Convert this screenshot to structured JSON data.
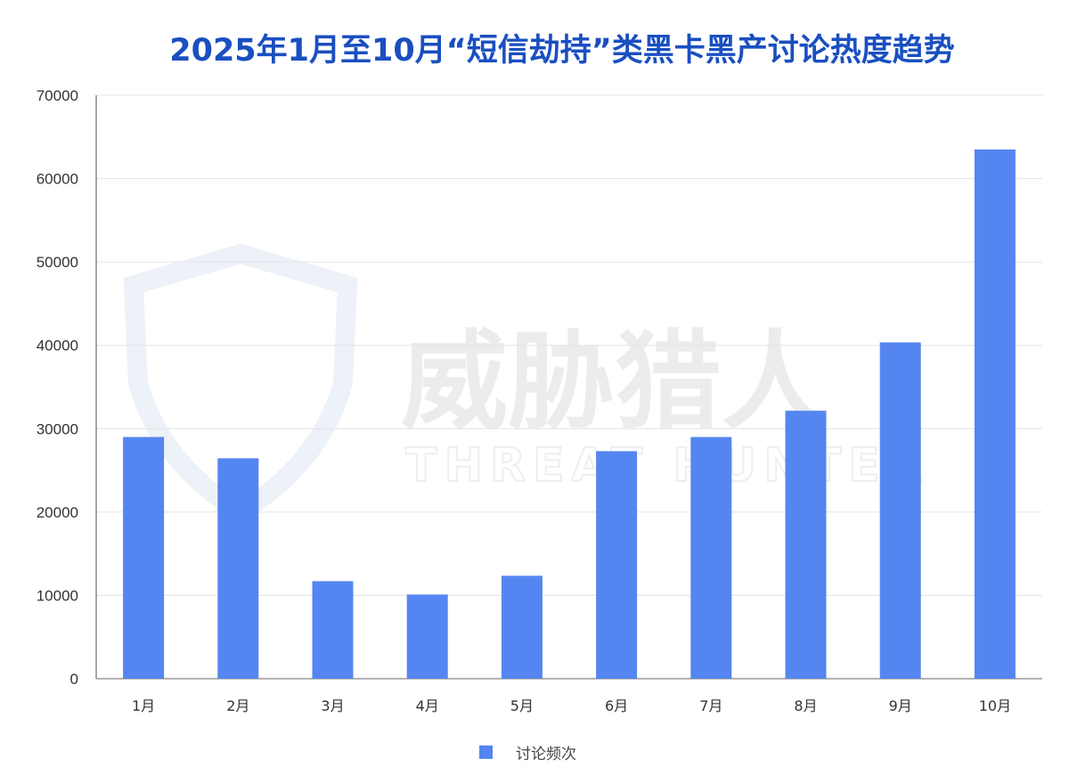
{
  "chart_data": {
    "type": "bar",
    "title": "2025年1月至10月“短信劫持”类黑卡黑产讨论热度趋势",
    "categories": [
      "1月",
      "2月",
      "3月",
      "4月",
      "5月",
      "6月",
      "7月",
      "8月",
      "9月",
      "10月"
    ],
    "series": [
      {
        "name": "讨论频次",
        "values": [
          29000,
          26450,
          11700,
          10100,
          12350,
          27300,
          29000,
          32150,
          40350,
          63500
        ],
        "color": "#5585f0"
      }
    ],
    "xlabel": "",
    "ylabel": "",
    "ylim": [
      0,
      70000
    ],
    "yticks": [
      "0",
      "10000",
      "20000",
      "30000",
      "40000",
      "50000",
      "60000",
      "70000"
    ],
    "grid": true,
    "legend": "bottom"
  },
  "watermark": {
    "cn": "威胁猎人",
    "en": "THREAT HUNTER"
  },
  "colors": {
    "title": "#1a4fc0",
    "bar": "#5585f0",
    "grid": "#e3e3e3"
  }
}
